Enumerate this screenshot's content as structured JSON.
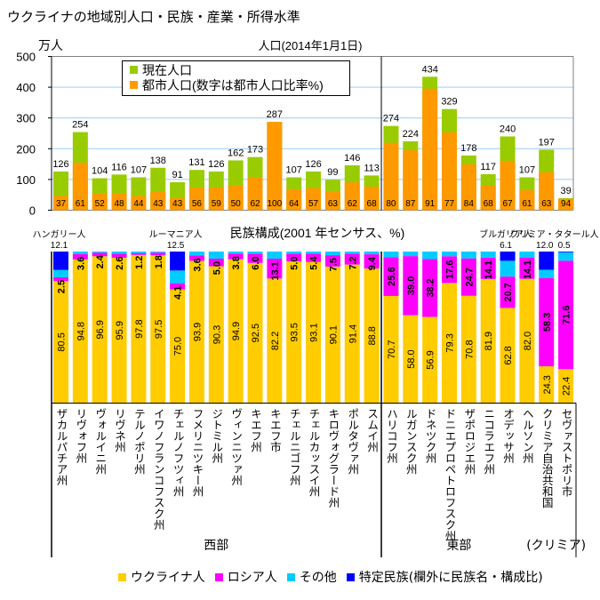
{
  "page": {
    "title": "ウクライナの地域別人口・民族・産業・所得水準"
  },
  "colors": {
    "current_population": "#99CC00",
    "urban_population": "#FF9900",
    "ukrainian": "#FFCC00",
    "russian": "#FF00FF",
    "other": "#00CCFF",
    "specific": "#0000FF",
    "gridline": "#99CCFF",
    "frame": "#808080"
  },
  "bottom_legend": [
    {
      "key": "ukrainian",
      "label": "ウクライナ人"
    },
    {
      "key": "russian",
      "label": "ロシア人"
    },
    {
      "key": "other",
      "label": "その他"
    },
    {
      "key": "specific",
      "label": "特定民族(欄外に民族名・構成比)"
    }
  ],
  "groups": [
    {
      "label": "西部",
      "count": 17
    },
    {
      "label": "東部",
      "count": 8
    },
    {
      "label": "(クリミア)",
      "count": 2
    }
  ],
  "chart_data": [
    {
      "id": "population",
      "type": "bar",
      "title": "人口(2014年1月1日)",
      "xlabel": "",
      "ylabel": "万人",
      "ylim": [
        0,
        500
      ],
      "yticks": [
        0,
        100,
        200,
        300,
        400,
        500
      ],
      "grid": true,
      "legend_position": "top-left",
      "legend": [
        {
          "key": "current_population",
          "label": "現在人口"
        },
        {
          "key": "urban_population",
          "label": "都市人口(数字は都市人口比率%)"
        }
      ],
      "categories": [
        "ザカルパチア州",
        "リヴォフ州",
        "ヴォルイニ州",
        "リヴネ州",
        "テルノポリ州",
        "イワノフランコフスク州",
        "チェルノフツィ州",
        "フメリニツキー州",
        "ジトミル州",
        "ヴィンニツァ州",
        "キエフ州",
        "キエフ市",
        "チェルニゴフ州",
        "チェルカッスイ州",
        "キロヴォグラード州",
        "ポルタヴァ州",
        "スムイ州",
        "ハリコフ州",
        "ルガンスク州",
        "ドネツク州",
        "ドニエプロペトロフスク州",
        "ザポロジエ州",
        "ニコラエフ州",
        "オデッサ州",
        "ヘルソン州",
        "クリミア自治共和国",
        "セヴァストポリ市"
      ],
      "series": [
        {
          "name": "現在人口",
          "unit": "万人",
          "values": [
            126,
            254,
            104,
            116,
            107,
            138,
            91,
            131,
            126,
            162,
            173,
            287,
            107,
            126,
            99,
            146,
            113,
            274,
            224,
            434,
            329,
            178,
            117,
            240,
            107,
            197,
            39
          ]
        },
        {
          "name": "都市人口比率",
          "unit": "%",
          "values": [
            37,
            61,
            52,
            48,
            44,
            43,
            43,
            56,
            59,
            50,
            62,
            100,
            64,
            57,
            63,
            62,
            68,
            80,
            87,
            91,
            77,
            84,
            68,
            67,
            61,
            63,
            94
          ]
        }
      ]
    },
    {
      "id": "ethnicity",
      "type": "bar",
      "stacked": true,
      "title": "民族構成(2001 年センサス、%)",
      "ylim": [
        0,
        100
      ],
      "categories": [
        "ザカルパチア州",
        "リヴォフ州",
        "ヴォルイニ州",
        "リヴネ州",
        "テルノポリ州",
        "イワノフランコフスク州",
        "チェルノフツィ州",
        "フメリニツキー州",
        "ジトミル州",
        "ヴィンニツァ州",
        "キエフ州",
        "キエフ市",
        "チェルニゴフ州",
        "チェルカッスイ州",
        "キロヴォグラード州",
        "ポルタヴァ州",
        "スムイ州",
        "ハリコフ州",
        "ルガンスク州",
        "ドネツク州",
        "ドニエプロペトロフスク州",
        "ザポロジエ州",
        "ニコラエフ州",
        "オデッサ州",
        "ヘルソン州",
        "クリミア自治共和国",
        "セヴァストポリ市"
      ],
      "series": [
        {
          "key": "ukrainian",
          "name": "ウクライナ人",
          "values": [
            80.5,
            94.8,
            96.9,
            95.9,
            97.8,
            97.5,
            75.0,
            93.9,
            90.3,
            94.9,
            92.5,
            82.2,
            93.5,
            93.1,
            90.1,
            91.4,
            88.8,
            70.7,
            58.0,
            56.9,
            79.3,
            70.8,
            81.9,
            62.8,
            82.0,
            24.3,
            22.4
          ]
        },
        {
          "key": "russian",
          "name": "ロシア人",
          "values": [
            2.5,
            3.6,
            2.4,
            2.6,
            1.2,
            1.8,
            4.1,
            3.6,
            5.0,
            3.8,
            6.0,
            13.1,
            5.0,
            5.4,
            7.5,
            7.2,
            9.4,
            25.6,
            39.0,
            38.2,
            17.6,
            24.7,
            14.1,
            20.7,
            14.1,
            58.3,
            71.6
          ]
        },
        {
          "key": "other",
          "name": "その他",
          "values": [
            4.9,
            1.6,
            0.7,
            1.5,
            1.0,
            0.7,
            8.4,
            2.5,
            4.7,
            1.3,
            1.5,
            4.7,
            1.5,
            1.5,
            2.4,
            1.4,
            1.8,
            3.7,
            3.0,
            4.9,
            3.1,
            4.5,
            4.0,
            10.4,
            3.9,
            5.4,
            5.5
          ]
        },
        {
          "key": "specific",
          "name": "特定民族",
          "values": [
            12.1,
            0,
            0,
            0,
            0,
            0,
            12.5,
            0,
            0,
            0,
            0,
            0,
            0,
            0,
            0,
            0,
            0,
            0,
            0,
            0,
            0,
            0,
            0,
            6.1,
            0,
            12.0,
            0.5
          ]
        }
      ],
      "specific_groups": [
        {
          "label": "ハンガリー人",
          "indices": [
            0
          ]
        },
        {
          "label": "ルーマニア人",
          "indices": [
            6
          ]
        },
        {
          "label": "ブルガリア人",
          "indices": [
            23
          ]
        },
        {
          "label": "クリミア・タタール人",
          "indices": [
            25,
            26
          ]
        }
      ],
      "legend_position": "bottom"
    }
  ]
}
